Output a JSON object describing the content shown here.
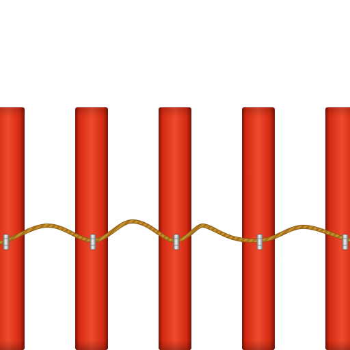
{
  "scene": {
    "background": "#ffffff",
    "posts": {
      "count": 5,
      "color": "#d42a12",
      "highlight": "#ee4a2c",
      "shadow": "#7e1308"
    },
    "rope": {
      "color": "#c9912c",
      "dark": "#8a5c12"
    },
    "clips": {
      "count": 5,
      "color": "#c8c8c8",
      "icon": "metal-clip"
    }
  }
}
